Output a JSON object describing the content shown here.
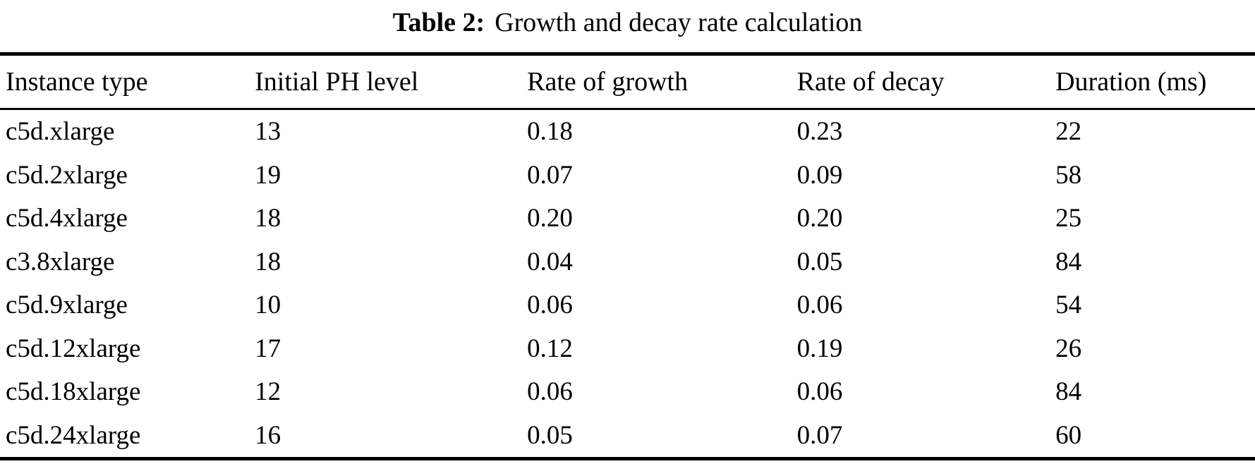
{
  "table": {
    "caption": {
      "label": "Table 2:",
      "text": "Growth and decay rate calculation"
    },
    "columns": [
      "Instance type",
      "Initial PH level",
      "Rate of growth",
      "Rate of decay",
      "Duration (ms)"
    ],
    "rows": [
      [
        "c5d.xlarge",
        "13",
        "0.18",
        "0.23",
        "22"
      ],
      [
        "c5d.2xlarge",
        "19",
        "0.07",
        "0.09",
        "58"
      ],
      [
        "c5d.4xlarge",
        "18",
        "0.20",
        "0.20",
        "25"
      ],
      [
        "c3.8xlarge",
        "18",
        "0.04",
        "0.05",
        "84"
      ],
      [
        "c5d.9xlarge",
        "10",
        "0.06",
        "0.06",
        "54"
      ],
      [
        "c5d.12xlarge",
        "17",
        "0.12",
        "0.19",
        "26"
      ],
      [
        "c5d.18xlarge",
        "12",
        "0.06",
        "0.06",
        "84"
      ],
      [
        "c5d.24xlarge",
        "16",
        "0.05",
        "0.07",
        "60"
      ]
    ],
    "colors": {
      "text": "#000000",
      "background": "#ffffff",
      "rule": "#000000"
    }
  }
}
